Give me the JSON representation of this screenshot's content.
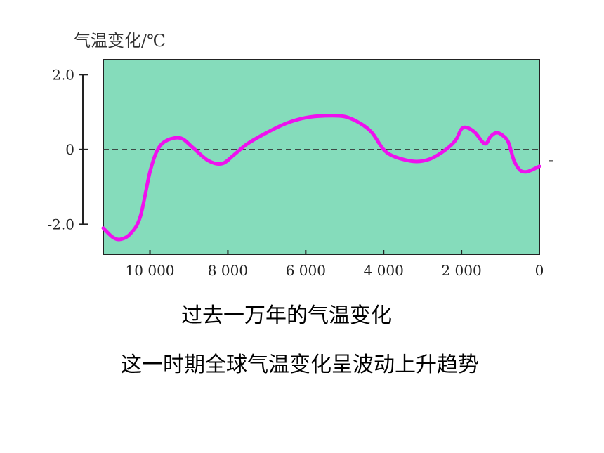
{
  "chart_data": {
    "type": "line",
    "title": "",
    "ylabel": "气温变化/℃",
    "xlabel": "",
    "xlim": [
      11200,
      0
    ],
    "ylim": [
      -2.8,
      2.4
    ],
    "x_ticks": [
      {
        "value": 10000,
        "label": "10 000"
      },
      {
        "value": 8000,
        "label": "8 000"
      },
      {
        "value": 6000,
        "label": "6 000"
      },
      {
        "value": 4000,
        "label": "4 000"
      },
      {
        "value": 2000,
        "label": "2 000"
      },
      {
        "value": 0,
        "label": "0"
      }
    ],
    "y_ticks": [
      {
        "value": 2.0,
        "label": "2.0"
      },
      {
        "value": 0,
        "label": "0"
      },
      {
        "value": -2.0,
        "label": "-2.0"
      }
    ],
    "reference_line": 0,
    "series": [
      {
        "x": [
          11200,
          10950,
          10750,
          10500,
          10250,
          10000,
          9800,
          9550,
          9200,
          8900,
          8500,
          8150,
          7850,
          7500,
          7000,
          6500,
          6000,
          5500,
          5000,
          4600,
          4300,
          4000,
          3700,
          3200,
          2800,
          2400,
          2150,
          2000,
          1850,
          1650,
          1400,
          1250,
          1100,
          950,
          800,
          650,
          500,
          350,
          200,
          0
        ],
        "y": [
          -2.1,
          -2.35,
          -2.4,
          -2.25,
          -1.8,
          -0.6,
          0.0,
          0.25,
          0.3,
          0.05,
          -0.3,
          -0.38,
          -0.15,
          0.15,
          0.45,
          0.7,
          0.85,
          0.9,
          0.88,
          0.7,
          0.45,
          0.0,
          -0.2,
          -0.32,
          -0.25,
          0.0,
          0.25,
          0.55,
          0.58,
          0.45,
          0.15,
          0.35,
          0.45,
          0.38,
          0.2,
          -0.3,
          -0.55,
          -0.6,
          -0.55,
          -0.45
        ]
      }
    ],
    "colors": {
      "plot_background": "#85dcbb",
      "curve": "#ee11ee",
      "zero_line": "#333333"
    }
  },
  "captions": {
    "title": "过去一万年的气温变化",
    "summary": "这一时期全球气温变化呈波动上升趋势"
  }
}
